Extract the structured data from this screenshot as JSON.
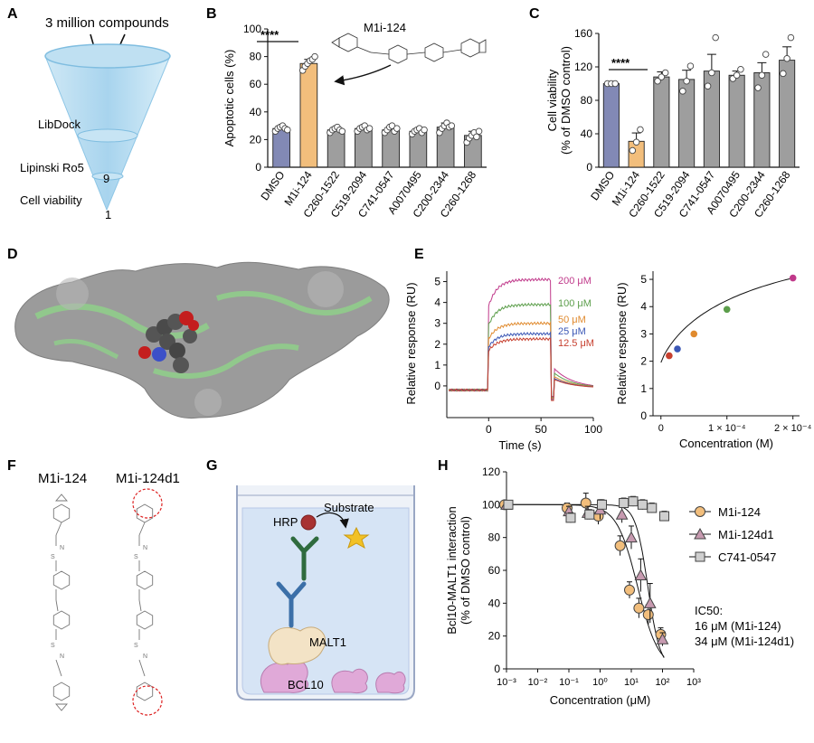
{
  "panels": {
    "A": {
      "letter": "A",
      "funnel_text": "3 million compounds",
      "stages": [
        "LibDock",
        "Lipinski Ro5",
        "Cell viability"
      ],
      "counts": [
        "9",
        "1"
      ]
    },
    "B": {
      "letter": "B",
      "compound_label": "M1i-124",
      "sig": "****"
    },
    "C": {
      "letter": "C",
      "sig": "****"
    },
    "D": {
      "letter": "D"
    },
    "E": {
      "letter": "E"
    },
    "F": {
      "letter": "F",
      "mol1": "M1i-124",
      "mol2": "M1i-124d1"
    },
    "G": {
      "letter": "G",
      "labels": {
        "substrate": "Substrate",
        "hrp": "HRP",
        "malt1": "MALT1",
        "bcl10": "BCL10"
      }
    },
    "H": {
      "letter": "H",
      "ic50_title": "IC50:",
      "ic50_lines": [
        "16 μM (M1i-124)",
        "34 μM (M1i-124d1)"
      ]
    }
  },
  "colors": {
    "dmso_bar": "#8289b5",
    "m1i_bar": "#f2be7c",
    "other_bar": "#9e9e9e",
    "sensorgram_200": "#c0398a",
    "sensorgram_100": "#5c9e4b",
    "sensorgram_50": "#e08a2e",
    "sensorgram_25": "#3b57b5",
    "sensorgram_12_5": "#c7402f"
  },
  "chart_data": [
    {
      "id": "B",
      "type": "bar",
      "categories": [
        "DMSO",
        "M1i-124",
        "C260-1522",
        "C519-2094",
        "C741-0547",
        "A0070495",
        "C200-2344",
        "C260-1268"
      ],
      "values": [
        28,
        75,
        27,
        28,
        27,
        26,
        29,
        23
      ],
      "errors": [
        1.5,
        3,
        1.5,
        1.5,
        2,
        1.5,
        3,
        3
      ],
      "points": [
        [
          26,
          28,
          29,
          30,
          28,
          27
        ],
        [
          70,
          73,
          75,
          77,
          78,
          80
        ],
        [
          25,
          27,
          28,
          29,
          27,
          26
        ],
        [
          26,
          28,
          29,
          30,
          27,
          28
        ],
        [
          25,
          27,
          29,
          30,
          26,
          28
        ],
        [
          24,
          26,
          27,
          28,
          25,
          27
        ],
        [
          25,
          28,
          30,
          32,
          29,
          30
        ],
        [
          18,
          21,
          23,
          25,
          22,
          26
        ]
      ],
      "ylabel": "Apoptotic cells (%)",
      "ylim": [
        0,
        100
      ],
      "yticks": [
        0,
        20,
        40,
        60,
        80,
        100
      ]
    },
    {
      "id": "C",
      "type": "bar",
      "categories": [
        "DMSO",
        "M1i-124",
        "C260-1522",
        "C519-2094",
        "C741-0547",
        "A0070495",
        "C200-2344",
        "C260-1268"
      ],
      "values": [
        100,
        31,
        108,
        105,
        115,
        110,
        113,
        128
      ],
      "errors": [
        1,
        10,
        6,
        11,
        20,
        5,
        12,
        16
      ],
      "points": [
        [
          100,
          100,
          100
        ],
        [
          20,
          30,
          45
        ],
        [
          103,
          108,
          113
        ],
        [
          91,
          103,
          121
        ],
        [
          97,
          113,
          155
        ],
        [
          106,
          110,
          117
        ],
        [
          95,
          110,
          135
        ],
        [
          112,
          130,
          155
        ]
      ],
      "ylabel": "Cell viability (% of DMSO control)",
      "ylabel_lines": [
        "Cell viability",
        "(% of DMSO control)"
      ],
      "ylim": [
        0,
        160
      ],
      "yticks": [
        0,
        40,
        80,
        120,
        160
      ]
    },
    {
      "id": "E-sensorgram",
      "type": "line",
      "xlabel": "Time (s)",
      "ylabel": "Relative response (RU)",
      "xlim": [
        -40,
        100
      ],
      "ylim": [
        -1,
        5.5
      ],
      "xticks": [
        0,
        50,
        100
      ],
      "yticks": [
        0,
        1,
        2,
        3,
        4,
        5
      ],
      "series": [
        {
          "name": "200 μM",
          "plateau": 5.1
        },
        {
          "name": "100 μM",
          "plateau": 3.9
        },
        {
          "name": "50 μM",
          "plateau": 3.0
        },
        {
          "name": "25 μM",
          "plateau": 2.5
        },
        {
          "name": "12.5 μM",
          "plateau": 2.25
        }
      ]
    },
    {
      "id": "E-binding",
      "type": "scatter",
      "xlabel": "Concentration (M)",
      "ylabel": "Relative response (RU)",
      "xlim": [
        -1.2e-05,
        0.00021
      ],
      "ylim": [
        0,
        5.3
      ],
      "xtick_labels": [
        "0",
        "1 × 10⁻⁴",
        "2 × 10⁻⁴"
      ],
      "xticks": [
        0,
        0.0001,
        0.0002
      ],
      "yticks": [
        0,
        1,
        2,
        3,
        4,
        5
      ],
      "x": [
        1.25e-05,
        2.5e-05,
        5e-05,
        0.0001,
        0.0002
      ],
      "y": [
        2.2,
        2.45,
        3.0,
        3.9,
        5.05
      ]
    },
    {
      "id": "H",
      "type": "scatter",
      "xlabel": "Concentration (μM)",
      "ylabel": "Bcl10-MALT1 interaction (% of DMSO control)",
      "ylabel_lines": [
        "Bcl10-MALT1 interaction",
        "(% of DMSO control)"
      ],
      "xscale": "log",
      "xlim": [
        0.001,
        1000
      ],
      "ylim": [
        0,
        120
      ],
      "yticks": [
        0,
        20,
        40,
        60,
        80,
        100,
        120
      ],
      "xtick_labels": [
        "10⁻³",
        "10⁻²",
        "10⁻¹",
        "10⁰",
        "10¹",
        "10²",
        "10³"
      ],
      "series": [
        {
          "name": "M1i-124",
          "x": [
            0.001,
            0.1,
            0.4,
            1,
            5,
            10,
            20,
            40,
            100
          ],
          "y": [
            100,
            98,
            101,
            93,
            75,
            48,
            37,
            33,
            21
          ],
          "err": [
            2,
            3,
            6,
            5,
            6,
            5,
            6,
            6,
            4
          ]
        },
        {
          "name": "M1i-124d1",
          "x": [
            0.001,
            0.1,
            0.4,
            1,
            5,
            10,
            20,
            40,
            100
          ],
          "y": [
            100,
            96,
            95,
            97,
            94,
            80,
            57,
            40,
            18
          ],
          "err": [
            2,
            3,
            4,
            6,
            5,
            7,
            10,
            12,
            4
          ]
        },
        {
          "name": "C741-0547",
          "x": [
            0.001,
            0.1,
            0.4,
            1,
            5,
            10,
            20,
            40,
            100
          ],
          "y": [
            100,
            92,
            94,
            100,
            101,
            102,
            100,
            98,
            93
          ],
          "err": [
            2,
            3,
            3,
            3,
            3,
            3,
            3,
            3,
            3
          ]
        }
      ]
    }
  ]
}
